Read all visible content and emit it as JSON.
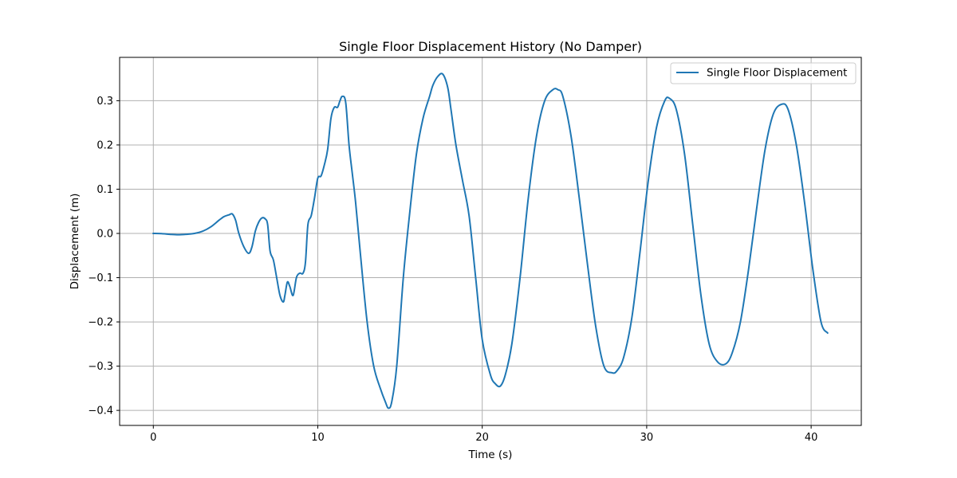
{
  "chart_data": {
    "type": "line",
    "title": "Single Floor Displacement History (No Damper)",
    "xlabel": "Time (s)",
    "ylabel": "Displacement (m)",
    "xlim": [
      -2.05,
      43.05
    ],
    "ylim": [
      -0.434,
      0.398
    ],
    "xticks": [
      0,
      10,
      20,
      30,
      40
    ],
    "yticks": [
      -0.4,
      -0.3,
      -0.2,
      -0.1,
      0.0,
      0.1,
      0.2,
      0.3
    ],
    "xtick_labels": [
      "0",
      "10",
      "20",
      "30",
      "40"
    ],
    "ytick_labels": [
      "−0.4",
      "−0.3",
      "−0.2",
      "−0.1",
      "0.0",
      "0.1",
      "0.2",
      "0.3"
    ],
    "grid": true,
    "legend_position": "upper right",
    "series": [
      {
        "name": "Single Floor Displacement",
        "color": "#1f77b4",
        "x": [
          0,
          0.5,
          1,
          1.5,
          2,
          2.5,
          3,
          3.5,
          4,
          4.3,
          4.6,
          4.8,
          5.0,
          5.2,
          5.5,
          5.8,
          6.0,
          6.2,
          6.4,
          6.6,
          6.8,
          6.95,
          7.1,
          7.3,
          7.5,
          7.7,
          7.9,
          8.0,
          8.15,
          8.3,
          8.5,
          8.7,
          8.9,
          9.1,
          9.25,
          9.4,
          9.6,
          9.8,
          10.0,
          10.2,
          10.4,
          10.6,
          10.8,
          11.0,
          11.2,
          11.35,
          11.5,
          11.7,
          11.9,
          12.1,
          12.3,
          12.6,
          13.0,
          13.4,
          13.8,
          14.1,
          14.3,
          14.5,
          14.8,
          15.2,
          15.6,
          16.0,
          16.4,
          16.8,
          17.0,
          17.3,
          17.6,
          17.9,
          18.1,
          18.4,
          18.8,
          19.2,
          19.6,
          20.0,
          20.5,
          20.8,
          21.1,
          21.4,
          21.8,
          22.3,
          22.8,
          23.3,
          23.8,
          24.3,
          24.6,
          24.9,
          25.4,
          25.9,
          26.4,
          26.9,
          27.4,
          27.9,
          28.2,
          28.6,
          29.1,
          29.6,
          30.1,
          30.6,
          31.1,
          31.4,
          31.8,
          32.3,
          32.8,
          33.3,
          33.8,
          34.3,
          34.8,
          35.2,
          35.7,
          36.2,
          36.7,
          37.2,
          37.7,
          38.2,
          38.6,
          39.1,
          39.6,
          40.1,
          40.6,
          41.0
        ],
        "y": [
          0.0,
          -0.0005,
          -0.002,
          -0.003,
          -0.002,
          0.0,
          0.005,
          0.015,
          0.03,
          0.038,
          0.042,
          0.044,
          0.03,
          0.0,
          -0.03,
          -0.045,
          -0.03,
          0.005,
          0.025,
          0.035,
          0.033,
          0.02,
          -0.04,
          -0.06,
          -0.1,
          -0.14,
          -0.155,
          -0.14,
          -0.11,
          -0.12,
          -0.14,
          -0.1,
          -0.09,
          -0.09,
          -0.065,
          0.02,
          0.04,
          0.08,
          0.125,
          0.13,
          0.155,
          0.19,
          0.26,
          0.285,
          0.285,
          0.3,
          0.31,
          0.295,
          0.2,
          0.135,
          0.07,
          -0.05,
          -0.2,
          -0.3,
          -0.35,
          -0.38,
          -0.395,
          -0.38,
          -0.3,
          -0.1,
          0.05,
          0.18,
          0.26,
          0.31,
          0.335,
          0.355,
          0.36,
          0.33,
          0.28,
          0.2,
          0.12,
          0.04,
          -0.1,
          -0.24,
          -0.32,
          -0.34,
          -0.345,
          -0.32,
          -0.25,
          -0.1,
          0.08,
          0.22,
          0.3,
          0.325,
          0.325,
          0.31,
          0.22,
          0.08,
          -0.07,
          -0.21,
          -0.3,
          -0.315,
          -0.31,
          -0.28,
          -0.19,
          -0.04,
          0.12,
          0.24,
          0.3,
          0.305,
          0.28,
          0.18,
          0.02,
          -0.14,
          -0.25,
          -0.29,
          -0.295,
          -0.27,
          -0.2,
          -0.08,
          0.06,
          0.19,
          0.27,
          0.292,
          0.28,
          0.2,
          0.07,
          -0.08,
          -0.2,
          -0.225
        ]
      }
    ]
  }
}
